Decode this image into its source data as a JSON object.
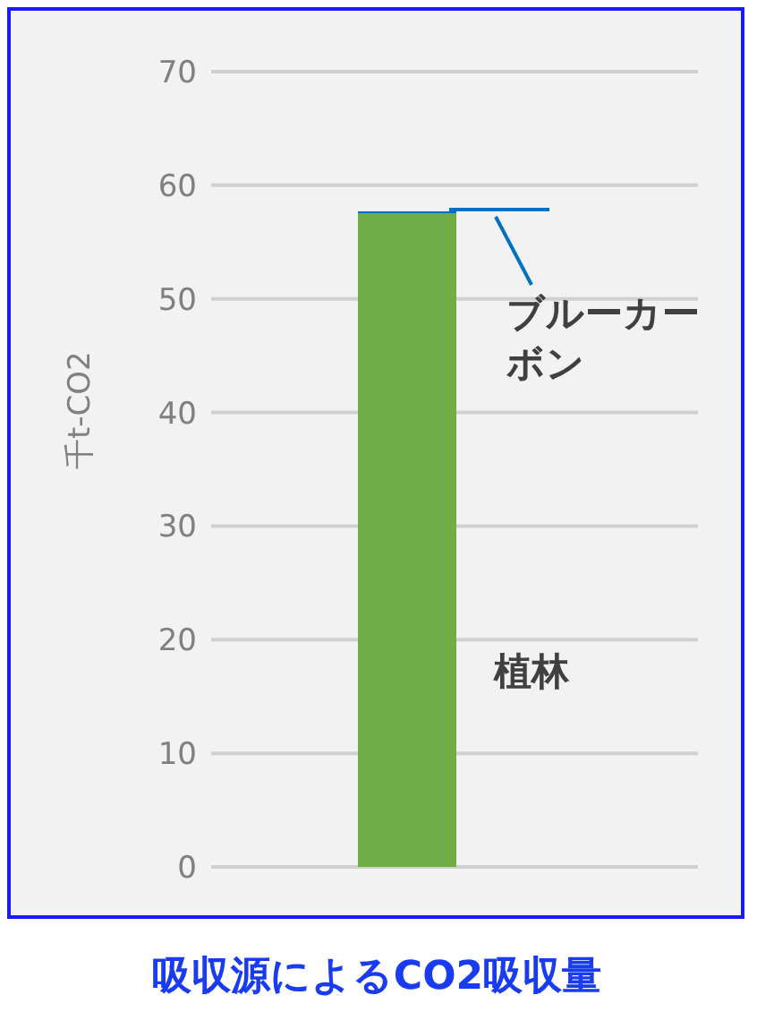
{
  "chart_data": {
    "type": "bar",
    "title": "吸収源によるCO2吸収量",
    "ylabel": "千t-CO2",
    "categories": [
      null
    ],
    "stacked": true,
    "series": [
      {
        "name": "植林",
        "color": "#70ad47",
        "values": [
          57.5
        ]
      },
      {
        "name": "ブルーカーボン",
        "color": "#0070c0",
        "values": [
          0.2
        ]
      }
    ],
    "ylim": [
      0,
      70
    ],
    "yticks": [
      0,
      10,
      20,
      30,
      40,
      50,
      60,
      70
    ],
    "grid": "y",
    "legend": "right"
  }
}
